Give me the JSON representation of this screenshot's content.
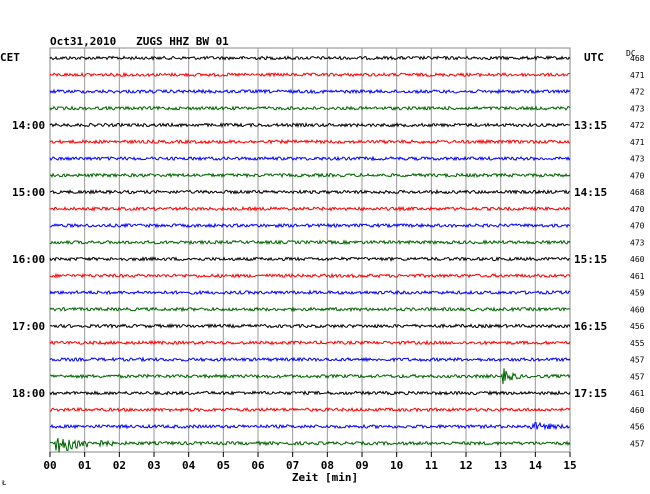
{
  "header": {
    "title": "Oct31,2010   ZUGS HHZ BW 01",
    "left_zone": "CET",
    "right_zone": "UTC",
    "dc_label": "DC"
  },
  "x_axis": {
    "label": "Zeit [min]",
    "ticks": [
      "00",
      "01",
      "02",
      "03",
      "04",
      "05",
      "06",
      "07",
      "08",
      "09",
      "10",
      "11",
      "12",
      "13",
      "14",
      "15"
    ]
  },
  "footer": {
    "corner_mark": "Ł"
  },
  "chart_data": {
    "type": "line",
    "title": "Oct31,2010   ZUGS HHZ BW 01",
    "xlabel": "Zeit [min]",
    "xlim": [
      0,
      15
    ],
    "grid": true,
    "trace_minutes": 15,
    "row_colors": [
      "#000000",
      "#ff0000",
      "#0000ff",
      "#006400"
    ],
    "cet_hour_labels": [
      {
        "row": 4,
        "label": "14:00"
      },
      {
        "row": 8,
        "label": "15:00"
      },
      {
        "row": 12,
        "label": "16:00"
      },
      {
        "row": 16,
        "label": "17:00"
      },
      {
        "row": 20,
        "label": "18:00"
      }
    ],
    "utc_hour_labels": [
      {
        "row": 4,
        "label": "13:15"
      },
      {
        "row": 8,
        "label": "14:15"
      },
      {
        "row": 12,
        "label": "15:15"
      },
      {
        "row": 16,
        "label": "16:15"
      },
      {
        "row": 20,
        "label": "17:15"
      }
    ],
    "dc_offsets": [
      "468",
      "471",
      "472",
      "473",
      "472",
      "471",
      "473",
      "470",
      "468",
      "470",
      "470",
      "473",
      "460",
      "461",
      "459",
      "460",
      "456",
      "455",
      "457",
      "457",
      "461",
      "460",
      "456",
      "457"
    ],
    "events": [
      {
        "row": 19,
        "minute": 13.1,
        "amplitude": 1.6,
        "duration_min": 0.5
      },
      {
        "row": 22,
        "minute": 13.9,
        "amplitude": 0.8,
        "duration_min": 1.1
      },
      {
        "row": 23,
        "minute": 0.2,
        "amplitude": 2.4,
        "duration_min": 1.6
      }
    ]
  }
}
